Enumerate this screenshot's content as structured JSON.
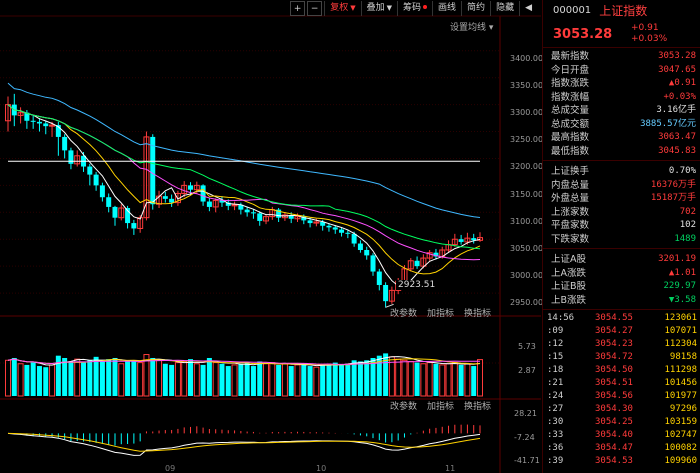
{
  "toolbar": {
    "plus": "+",
    "minus": "−",
    "adjust": "复权",
    "overlay": "叠加",
    "chip": "筹码",
    "draw": "画线",
    "simple": "简约",
    "hide": "隐藏",
    "arrow": "◀"
  },
  "indicator_setting": "设置均线",
  "price_axis": [
    "3400.00",
    "3350.00",
    "3300.00",
    "3250.00",
    "3200.00",
    "3150.00",
    "3100.00",
    "3050.00",
    "3000.00",
    "2950.00"
  ],
  "low_label": "2923.51",
  "vol_toolbar": [
    "改参数",
    "加指标",
    "换指标"
  ],
  "macd_toolbar": [
    "改参数",
    "加指标",
    "换指标"
  ],
  "vol_axis": [
    "5.73",
    "2.87"
  ],
  "macd_axis": [
    "28.21",
    "-7.24",
    "-41.71"
  ],
  "months": [
    "09",
    "10",
    "11"
  ],
  "quote": {
    "code": "000001",
    "name": "上证指数",
    "price": "3053.28",
    "change": "+0.91",
    "change_pct": "+0.03%"
  },
  "stats_a": [
    {
      "label": "最新指数",
      "value": "3053.28",
      "color": "red"
    },
    {
      "label": "今日开盘",
      "value": "3047.65",
      "color": "red"
    },
    {
      "label": "指数涨跌",
      "value": "▲0.91",
      "color": "red"
    },
    {
      "label": "指数涨幅",
      "value": "+0.03%",
      "color": "red"
    },
    {
      "label": "总成交量",
      "value": "3.16亿手",
      "color": "white"
    },
    {
      "label": "总成交额",
      "value": "3885.57亿元",
      "color": "blue"
    },
    {
      "label": "最高指数",
      "value": "3063.47",
      "color": "red"
    },
    {
      "label": "最低指数",
      "value": "3045.83",
      "color": "red"
    }
  ],
  "stats_b": [
    {
      "label": "上证换手",
      "value": "0.70%",
      "color": "white"
    },
    {
      "label": "内盘总量",
      "value": "16376万手",
      "color": "red"
    },
    {
      "label": "外盘总量",
      "value": "15187万手",
      "color": "red"
    },
    {
      "label": "上涨家数",
      "value": "702",
      "color": "red"
    },
    {
      "label": "平盘家数",
      "value": "102",
      "color": "white"
    },
    {
      "label": "下跌家数",
      "value": "1489",
      "color": "green"
    }
  ],
  "stats_c": [
    {
      "label": "上证A股",
      "value": "3201.19",
      "color": "red"
    },
    {
      "label": "上A涨跌",
      "value": "▲1.01",
      "color": "red"
    },
    {
      "label": "上证B股",
      "value": "229.97",
      "color": "green"
    },
    {
      "label": "上B涨跌",
      "value": "▼3.58",
      "color": "green"
    }
  ],
  "ticks": [
    {
      "time": "14:56",
      "price": "3054.55",
      "vol": "123061"
    },
    {
      "time": ":09",
      "price": "3054.27",
      "vol": "107071"
    },
    {
      "time": ":12",
      "price": "3054.23",
      "vol": "112304"
    },
    {
      "time": ":15",
      "price": "3054.72",
      "vol": "98158"
    },
    {
      "time": ":18",
      "price": "3054.50",
      "vol": "111298"
    },
    {
      "time": ":21",
      "price": "3054.51",
      "vol": "101456"
    },
    {
      "time": ":24",
      "price": "3054.56",
      "vol": "101977"
    },
    {
      "time": ":27",
      "price": "3054.30",
      "vol": "97296"
    },
    {
      "time": ":30",
      "price": "3054.25",
      "vol": "103159"
    },
    {
      "time": ":33",
      "price": "3054.40",
      "vol": "102747"
    },
    {
      "time": ":36",
      "price": "3054.47",
      "vol": "100082"
    },
    {
      "time": ":39",
      "price": "3054.53",
      "vol": "109960"
    }
  ],
  "colors": {
    "up": "#ff3b3b",
    "down": "#00ffff",
    "ma5": "#ffffff",
    "ma10": "#ffd200",
    "ma20": "#ff50ff",
    "ma30": "#00ff60",
    "ma60": "#3fb8ff",
    "ma120": "#ffffff"
  },
  "chart_data": {
    "type": "candlestick",
    "ylim": [
      2900,
      3420
    ],
    "low_point": 2923.51,
    "candles": [
      [
        3270,
        3300,
        3250,
        3315
      ],
      [
        3300,
        3280,
        3260,
        3320
      ],
      [
        3280,
        3285,
        3265,
        3295
      ],
      [
        3285,
        3270,
        3255,
        3290
      ],
      [
        3270,
        3268,
        3255,
        3280
      ],
      [
        3268,
        3265,
        3250,
        3275
      ],
      [
        3265,
        3260,
        3245,
        3270
      ],
      [
        3260,
        3262,
        3240,
        3268
      ],
      [
        3262,
        3240,
        3205,
        3268
      ],
      [
        3240,
        3215,
        3200,
        3245
      ],
      [
        3215,
        3190,
        3180,
        3220
      ],
      [
        3190,
        3205,
        3185,
        3215
      ],
      [
        3205,
        3185,
        3175,
        3212
      ],
      [
        3185,
        3170,
        3150,
        3190
      ],
      [
        3170,
        3150,
        3140,
        3175
      ],
      [
        3150,
        3128,
        3120,
        3155
      ],
      [
        3128,
        3110,
        3100,
        3135
      ],
      [
        3110,
        3090,
        3075,
        3112
      ],
      [
        3090,
        3108,
        3085,
        3115
      ],
      [
        3108,
        3080,
        3070,
        3112
      ],
      [
        3080,
        3070,
        3058,
        3086
      ],
      [
        3070,
        3090,
        3062,
        3095
      ],
      [
        3090,
        3240,
        3085,
        3250
      ],
      [
        3240,
        3115,
        3105,
        3245
      ],
      [
        3115,
        3130,
        3108,
        3140
      ],
      [
        3130,
        3125,
        3118,
        3138
      ],
      [
        3125,
        3118,
        3110,
        3133
      ],
      [
        3118,
        3135,
        3112,
        3140
      ],
      [
        3135,
        3150,
        3128,
        3158
      ],
      [
        3150,
        3142,
        3132,
        3156
      ],
      [
        3142,
        3150,
        3135,
        3157
      ],
      [
        3150,
        3120,
        3112,
        3152
      ],
      [
        3120,
        3110,
        3102,
        3126
      ],
      [
        3110,
        3122,
        3100,
        3126
      ],
      [
        3122,
        3118,
        3110,
        3130
      ],
      [
        3118,
        3112,
        3104,
        3124
      ],
      [
        3112,
        3114,
        3104,
        3120
      ],
      [
        3114,
        3105,
        3096,
        3118
      ],
      [
        3105,
        3100,
        3092,
        3110
      ],
      [
        3100,
        3098,
        3088,
        3106
      ],
      [
        3098,
        3084,
        3075,
        3102
      ],
      [
        3084,
        3092,
        3078,
        3096
      ],
      [
        3092,
        3105,
        3086,
        3110
      ],
      [
        3105,
        3090,
        3082,
        3108
      ],
      [
        3090,
        3095,
        3084,
        3100
      ],
      [
        3095,
        3088,
        3080,
        3100
      ],
      [
        3088,
        3092,
        3082,
        3098
      ],
      [
        3092,
        3085,
        3078,
        3096
      ],
      [
        3085,
        3080,
        3072,
        3090
      ],
      [
        3080,
        3082,
        3074,
        3088
      ],
      [
        3082,
        3075,
        3066,
        3086
      ],
      [
        3075,
        3072,
        3064,
        3080
      ],
      [
        3072,
        3068,
        3060,
        3076
      ],
      [
        3068,
        3062,
        3055,
        3072
      ],
      [
        3062,
        3060,
        3052,
        3068
      ],
      [
        3060,
        3042,
        3036,
        3064
      ],
      [
        3042,
        3030,
        3025,
        3048
      ],
      [
        3030,
        3020,
        3012,
        3036
      ],
      [
        3020,
        2990,
        2982,
        3024
      ],
      [
        2990,
        2965,
        2955,
        2995
      ],
      [
        2965,
        2935,
        2923,
        2970
      ],
      [
        2935,
        2955,
        2930,
        2962
      ],
      [
        2955,
        2972,
        2948,
        2978
      ],
      [
        2972,
        2995,
        2968,
        3002
      ],
      [
        2995,
        3010,
        2990,
        3015
      ],
      [
        3010,
        3000,
        2995,
        3018
      ],
      [
        3000,
        3015,
        2996,
        3022
      ],
      [
        3015,
        3025,
        3010,
        3030
      ],
      [
        3025,
        3018,
        3012,
        3032
      ],
      [
        3018,
        3030,
        3014,
        3036
      ],
      [
        3030,
        3040,
        3025,
        3048
      ],
      [
        3040,
        3050,
        3036,
        3060
      ],
      [
        3050,
        3045,
        3040,
        3058
      ],
      [
        3045,
        3052,
        3040,
        3062
      ],
      [
        3052,
        3048,
        3042,
        3060
      ],
      [
        3048,
        3053,
        3045,
        3063
      ]
    ],
    "volume": [
      3.1,
      3.3,
      2.8,
      2.7,
      2.9,
      2.6,
      2.5,
      2.7,
      3.5,
      3.3,
      3.0,
      3.2,
      2.9,
      3.1,
      3.4,
      3.0,
      3.2,
      3.3,
      2.8,
      3.0,
      3.1,
      2.9,
      3.6,
      3.3,
      3.1,
      2.8,
      2.7,
      2.9,
      3.0,
      3.2,
      2.8,
      2.7,
      3.3,
      2.9,
      2.8,
      2.6,
      2.7,
      2.8,
      2.9,
      2.6,
      3.0,
      2.8,
      2.9,
      2.7,
      2.8,
      2.6,
      2.7,
      2.8,
      2.6,
      2.5,
      2.7,
      2.8,
      2.9,
      2.7,
      2.8,
      3.1,
      3.0,
      3.1,
      3.3,
      3.5,
      3.7,
      3.4,
      3.2,
      3.1,
      3.0,
      2.9,
      2.8,
      2.9,
      2.8,
      2.7,
      2.8,
      2.9,
      2.7,
      2.8,
      2.6,
      3.16
    ],
    "macd_ylim": [
      -41.71,
      28.21
    ]
  }
}
